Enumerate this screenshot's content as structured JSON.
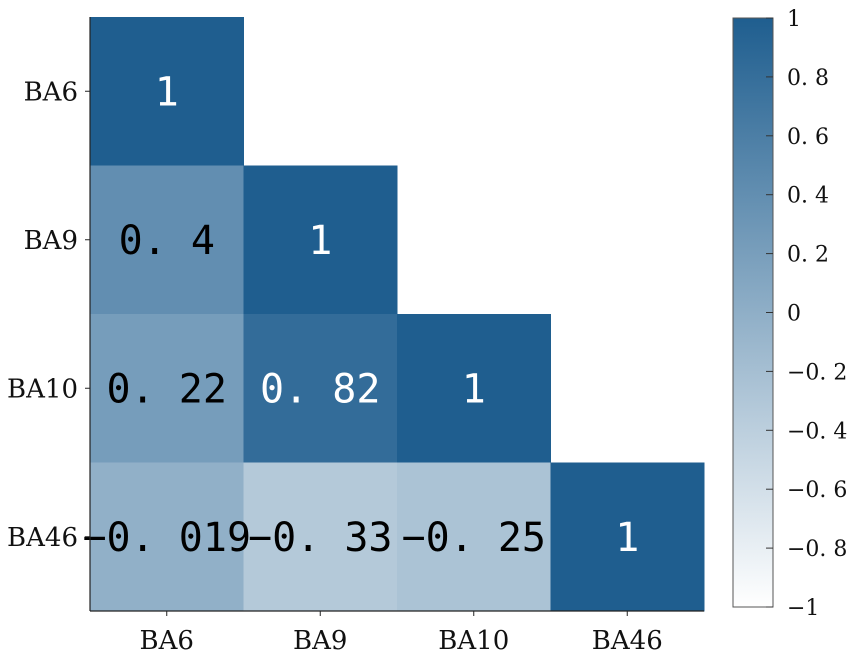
{
  "chart_data": {
    "type": "heatmap",
    "title": "",
    "variables": [
      "BA6",
      "BA9",
      "BA10",
      "BA46"
    ],
    "row_labels": [
      "BA6",
      "BA9",
      "BA10",
      "BA46"
    ],
    "col_labels": [
      "BA6",
      "BA9",
      "BA10",
      "BA46"
    ],
    "triangle": "lower",
    "cells": [
      {
        "row": "BA6",
        "col": "BA6",
        "value": 1,
        "label": "1"
      },
      {
        "row": "BA9",
        "col": "BA6",
        "value": 0.4,
        "label": "0. 4"
      },
      {
        "row": "BA9",
        "col": "BA9",
        "value": 1,
        "label": "1"
      },
      {
        "row": "BA10",
        "col": "BA6",
        "value": 0.22,
        "label": "0. 22"
      },
      {
        "row": "BA10",
        "col": "BA9",
        "value": 0.82,
        "label": "0. 82"
      },
      {
        "row": "BA10",
        "col": "BA10",
        "value": 1,
        "label": "1"
      },
      {
        "row": "BA46",
        "col": "BA6",
        "value": -0.019,
        "label": "−0. 019"
      },
      {
        "row": "BA46",
        "col": "BA9",
        "value": -0.33,
        "label": "−0. 33"
      },
      {
        "row": "BA46",
        "col": "BA10",
        "value": -0.25,
        "label": "−0. 25"
      },
      {
        "row": "BA46",
        "col": "BA46",
        "value": 1,
        "label": "1"
      }
    ],
    "colorbar": {
      "range": [
        -1,
        1
      ],
      "ticks": [
        1,
        0.8,
        0.6,
        0.4,
        0.2,
        0,
        -0.2,
        -0.4,
        -0.6,
        -0.8,
        -1
      ],
      "tick_labels": [
        "1",
        "0. 8",
        "0. 6",
        "0. 4",
        "0. 2",
        "0",
        "−0. 2",
        "−0. 4",
        "−0. 6",
        "−0. 8",
        "−1"
      ],
      "color_low": "#ffffff",
      "color_high": "#1f5e8f"
    },
    "grid": false,
    "legend": "right"
  }
}
